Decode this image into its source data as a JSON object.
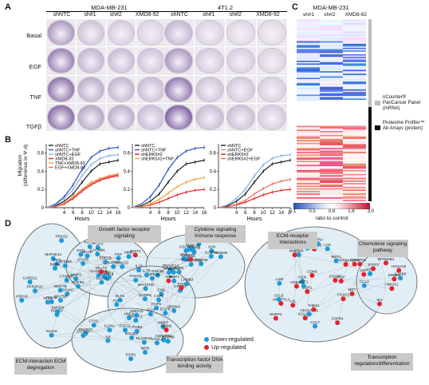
{
  "panels": {
    "A": "A",
    "B": "B",
    "C": "C",
    "D": "D"
  },
  "panelA": {
    "groups": [
      {
        "title": "MDA-MB-231",
        "columns": [
          "shNTC",
          "sh#1",
          "sh#2",
          "XMD8-92"
        ]
      },
      {
        "title": "4T1.2",
        "columns": [
          "shNTC",
          "sh#1",
          "sh#2",
          "XMD8-92"
        ]
      }
    ],
    "rows": [
      "Basal",
      "EGF",
      "TNF",
      "TGFβ"
    ],
    "well_intensity": {
      "MDA-MB-231": [
        [
          0.55,
          0.25,
          0.2,
          0.15
        ],
        [
          0.7,
          0.35,
          0.3,
          0.25
        ],
        [
          0.8,
          0.4,
          0.35,
          0.3
        ],
        [
          0.85,
          0.45,
          0.4,
          0.3
        ]
      ],
      "4T1.2": [
        [
          0.35,
          0.15,
          0.12,
          0.1
        ],
        [
          0.55,
          0.2,
          0.18,
          0.15
        ],
        [
          0.75,
          0.25,
          0.22,
          0.18
        ],
        [
          0.9,
          0.3,
          0.28,
          0.2
        ]
      ]
    }
  },
  "panelB": {
    "ylabel": "Migration\n(difference in Ψ.d)",
    "xlabel": "Hours",
    "xticks": [
      4,
      6,
      8,
      10,
      12,
      14,
      16
    ],
    "yticks": [
      0,
      0.2,
      0.4,
      0.6
    ],
    "subplots": [
      {
        "legend": [
          "shNTC",
          "shNTC+TNF",
          "shNTC+EGF",
          "XMD8-92",
          "TNF+XMD8-92",
          "EGF+XMD8-92"
        ],
        "series": [
          {
            "name": "shNTC",
            "color": "#1c1c1c",
            "values": [
              0,
              0.02,
              0.07,
              0.15,
              0.28,
              0.4,
              0.48,
              0.5,
              0.52
            ]
          },
          {
            "name": "shNTC+TNF",
            "color": "#2b4fbf",
            "values": [
              0,
              0.04,
              0.12,
              0.25,
              0.42,
              0.55,
              0.62,
              0.65,
              0.66
            ]
          },
          {
            "name": "shNTC+EGF",
            "color": "#7fb0e8",
            "values": [
              0,
              0.03,
              0.1,
              0.2,
              0.35,
              0.47,
              0.54,
              0.57,
              0.58
            ]
          },
          {
            "name": "XMD8-92",
            "color": "#d9231f",
            "values": [
              0,
              0.01,
              0.04,
              0.1,
              0.18,
              0.25,
              0.3,
              0.33,
              0.35
            ]
          },
          {
            "name": "TNF+XMD8-92",
            "color": "#f1a13a",
            "values": [
              0,
              0.01,
              0.05,
              0.12,
              0.2,
              0.28,
              0.32,
              0.35,
              0.37
            ]
          },
          {
            "name": "EGF+XMD8-92",
            "color": "#e86a59",
            "values": [
              0,
              0.01,
              0.045,
              0.11,
              0.19,
              0.26,
              0.31,
              0.34,
              0.36
            ]
          }
        ]
      },
      {
        "legend": [
          "shNTC",
          "shNTC+TNF",
          "shERK5#2",
          "shERK5#2+TNF"
        ],
        "series": [
          {
            "name": "shNTC",
            "color": "#1c1c1c",
            "values": [
              0,
              0.02,
              0.07,
              0.15,
              0.28,
              0.4,
              0.48,
              0.5,
              0.52
            ]
          },
          {
            "name": "shNTC+TNF",
            "color": "#2b4fbf",
            "values": [
              0,
              0.04,
              0.12,
              0.25,
              0.42,
              0.55,
              0.62,
              0.65,
              0.66
            ]
          },
          {
            "name": "shERK5#2",
            "color": "#d9231f",
            "values": [
              0,
              0.01,
              0.03,
              0.06,
              0.1,
              0.14,
              0.17,
              0.19,
              0.2
            ]
          },
          {
            "name": "shERK5#2+TNF",
            "color": "#f1a13a",
            "values": [
              0,
              0.01,
              0.04,
              0.09,
              0.16,
              0.23,
              0.28,
              0.31,
              0.33
            ]
          }
        ]
      },
      {
        "legend": [
          "shNTC",
          "shNTC+EGF",
          "shERK5#2",
          "shERK5#2+EGF"
        ],
        "series": [
          {
            "name": "shNTC",
            "color": "#1c1c1c",
            "values": [
              0,
              0.02,
              0.07,
              0.15,
              0.28,
              0.4,
              0.48,
              0.5,
              0.52
            ]
          },
          {
            "name": "shNTC+EGF",
            "color": "#7fb0e8",
            "values": [
              0,
              0.03,
              0.1,
              0.2,
              0.35,
              0.47,
              0.54,
              0.57,
              0.58
            ]
          },
          {
            "name": "shERK5#2",
            "color": "#d9231f",
            "values": [
              0,
              0.01,
              0.03,
              0.06,
              0.1,
              0.14,
              0.17,
              0.19,
              0.2
            ]
          },
          {
            "name": "shERK5#2+EGF",
            "color": "#e86a59",
            "values": [
              0,
              0.01,
              0.035,
              0.08,
              0.15,
              0.21,
              0.26,
              0.29,
              0.31
            ]
          }
        ]
      }
    ]
  },
  "panelC": {
    "title": "MDA-MB-231",
    "columns": [
      "sh#1",
      "sh#2",
      "XMD8-92"
    ],
    "colorbar_ticks": [
      "0.1",
      "0.5",
      "0.9",
      "1.8",
      "3.0"
    ],
    "colorbar_label": "ratio to control",
    "side_legend": [
      {
        "text": "nCounter® PanCancer Panel (mRNA)",
        "color": "#bdbdbd"
      },
      {
        "text": "Proteome Profiler™ Ab Arrays (protein)",
        "color": "#111111"
      }
    ]
  },
  "panelD": {
    "boxes": {
      "growth": "Growth factor receptor signaling",
      "cytokine": "Cytokine signaling Immune response",
      "ecm_int": "ECM-interaction ECM degregation",
      "tf": "Transcription factor DNA binding activity",
      "ecm_rec": "ECM-receptor interactions",
      "chemokine": "Chemokine signaling pathway",
      "trans_reg": "Transcription regulation/differentiation"
    },
    "legend": {
      "down": "Down-regulated",
      "up": "Up-regulated"
    },
    "colors": {
      "down": "#1e9ad6",
      "up": "#e5212a"
    },
    "left_nodes": [
      "TSPAN7",
      "LAMC2",
      "COL4A6",
      "TNC",
      "ITGB4",
      "HSPA6",
      "ITGA2",
      "LAMB3",
      "ENG",
      "ADAMTS1",
      "MMP3",
      "MMP9",
      "MMP10",
      "MMP7",
      "LOXL2",
      "KLK15",
      "KLK13",
      "KLK6",
      "MMP1",
      "CTSC",
      "PRSS3",
      "MME",
      "DNAJC14",
      "KLK5",
      "FGF11",
      "PDGFA",
      "PGF",
      "VEGFC",
      "FGF5",
      "EGR1",
      "FGFR2",
      "TGFB2",
      "PDGFB",
      "EGFR",
      "PLA2G4A",
      "PTK2B",
      "GADD45B",
      "ZAK",
      "DUSP6",
      "MAPK8",
      "MAP3K14",
      "AKT1",
      "MAPK3",
      "GSK3B",
      "PIK3CG",
      "CTNNB1",
      "PRKCG",
      "JUN",
      "CREB3",
      "NFATC1",
      "PPP2R2C",
      "CACNB4",
      "NR4A1",
      "MAPK10",
      "IL8",
      "TLR4",
      "IL18",
      "IL1A",
      "IL7R",
      "IL2RA",
      "JAK2",
      "IL20RA",
      "IL12RA",
      "CSF2",
      "STAT5A",
      "STAT5B",
      "STAT6",
      "TNFRSF10D",
      "SPATCH3",
      "BCL2L1",
      "CARD11",
      "DDIT3",
      "FOS",
      "FOXO1",
      "MYB",
      "SMAD4",
      "MLLT3",
      "HES1",
      "ATM",
      "MDM2",
      "NFKBIZ",
      "BCOR",
      "TET2",
      "PRDM1",
      "HMGA2",
      "WNT7B",
      "JAG1",
      "WNT2B",
      "GLI3",
      "HHEX",
      "BMP4",
      "PDE7B",
      "RRM2B"
    ],
    "left_up": [
      "FOS",
      "DDIT3",
      "HES1",
      "MLLT3",
      "MDM2",
      "ATM"
    ],
    "right_nodes": [
      "COL2A1",
      "PTCH1",
      "ANGPTL4",
      "LEP",
      "LUM",
      "DCN",
      "FGF2",
      "TEK",
      "CD99",
      "CDH5",
      "FDFR4",
      "HMOX1",
      "CEACAM5",
      "MUC1",
      "THBS1",
      "ERBB2",
      "ENPP2",
      "AXL",
      "MET",
      "STAT3",
      "LCK",
      "HSPD1",
      "PRKACB",
      "HOXA10",
      "RPS6KA1",
      "FOXC2",
      "FANCF",
      "ID1",
      "FIGF",
      "ESR1",
      "CREB1",
      "RPS6KB1",
      "CCL8",
      "IL2RA",
      "CCL3",
      "CCL2",
      "CSF1",
      "CCL7",
      "MST1",
      "IL18BP"
    ],
    "right_down": [
      "CCL8",
      "IL2RA",
      "CCL3",
      "CCL2",
      "CSF1",
      "CCL7",
      "MST1",
      "IL18BP",
      "CD99",
      "CEACAM5",
      "LCK",
      "TEK",
      "LUM",
      "DCN"
    ]
  }
}
